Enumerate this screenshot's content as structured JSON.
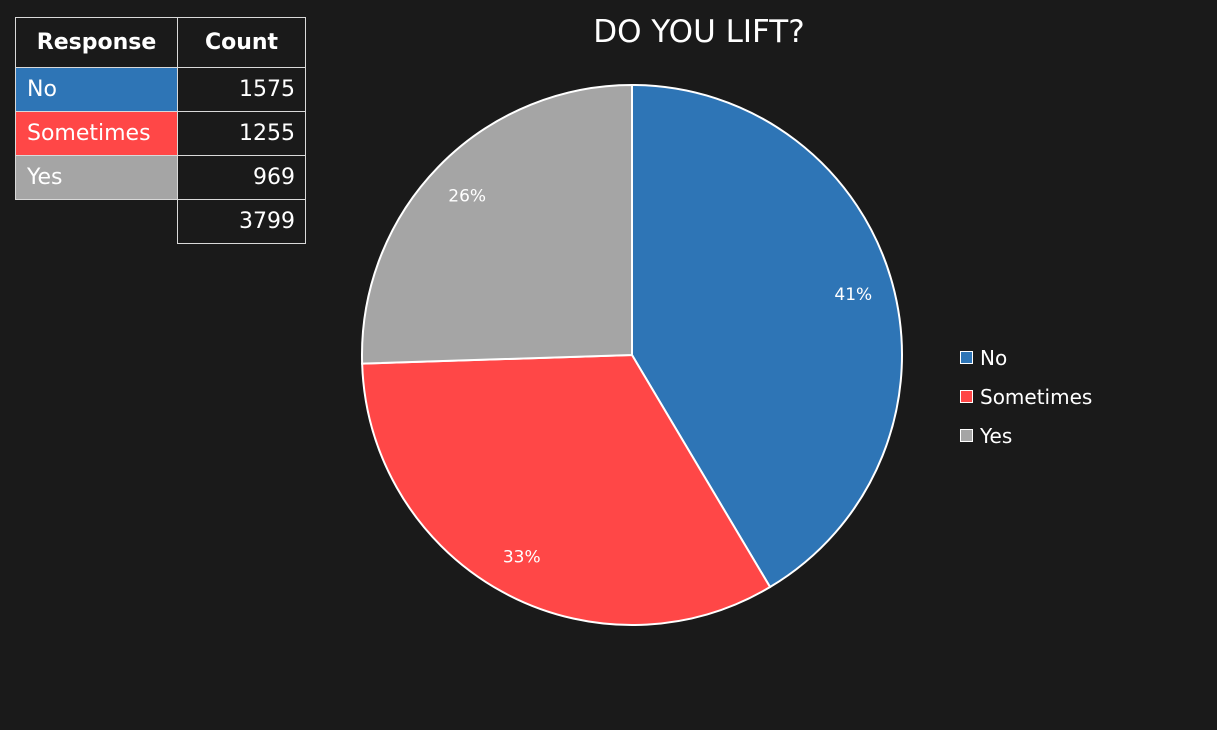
{
  "table": {
    "headers": [
      "Response",
      "Count"
    ],
    "rows": [
      {
        "label": "No",
        "count": "1575",
        "color": "#2e75b6"
      },
      {
        "label": "Sometimes",
        "count": "1255",
        "color": "#ff4747"
      },
      {
        "label": "Yes",
        "count": "969",
        "color": "#a5a5a5"
      }
    ],
    "total": "3799"
  },
  "chart_data": {
    "type": "pie",
    "title": "DO YOU LIFT?",
    "categories": [
      "No",
      "Sometimes",
      "Yes"
    ],
    "values": [
      1575,
      1255,
      969
    ],
    "percent_labels": [
      "41%",
      "33%",
      "26%"
    ],
    "colors": [
      "#2e75b6",
      "#ff4747",
      "#a5a5a5"
    ],
    "legend_position": "right",
    "start_angle_deg": 0,
    "direction": "clockwise-from-top"
  }
}
